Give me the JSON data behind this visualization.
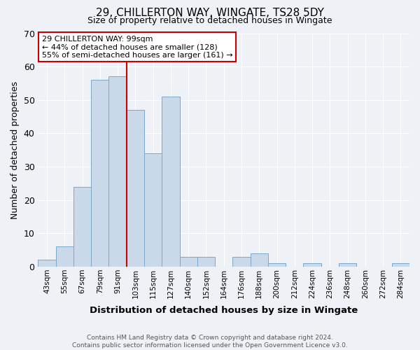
{
  "title": "29, CHILLERTON WAY, WINGATE, TS28 5DY",
  "subtitle": "Size of property relative to detached houses in Wingate",
  "xlabel": "Distribution of detached houses by size in Wingate",
  "ylabel": "Number of detached properties",
  "bar_color": "#c9d9ea",
  "bar_edge_color": "#7aa8cc",
  "bin_labels": [
    "43sqm",
    "55sqm",
    "67sqm",
    "79sqm",
    "91sqm",
    "103sqm",
    "115sqm",
    "127sqm",
    "140sqm",
    "152sqm",
    "164sqm",
    "176sqm",
    "188sqm",
    "200sqm",
    "212sqm",
    "224sqm",
    "236sqm",
    "248sqm",
    "260sqm",
    "272sqm",
    "284sqm"
  ],
  "bar_heights": [
    2,
    6,
    24,
    56,
    57,
    47,
    34,
    51,
    3,
    3,
    0,
    3,
    4,
    1,
    0,
    1,
    0,
    1,
    0,
    0,
    1
  ],
  "vline_index": 4,
  "vline_color": "#cc0000",
  "ylim": [
    0,
    70
  ],
  "yticks": [
    0,
    10,
    20,
    30,
    40,
    50,
    60,
    70
  ],
  "annotation_title": "29 CHILLERTON WAY: 99sqm",
  "annotation_line1": "← 44% of detached houses are smaller (128)",
  "annotation_line2": "55% of semi-detached houses are larger (161) →",
  "annotation_box_color": "#ffffff",
  "annotation_box_edge": "#cc0000",
  "footer1": "Contains HM Land Registry data © Crown copyright and database right 2024.",
  "footer2": "Contains public sector information licensed under the Open Government Licence v3.0.",
  "background_color": "#eef2f7",
  "grid_color": "#ffffff"
}
